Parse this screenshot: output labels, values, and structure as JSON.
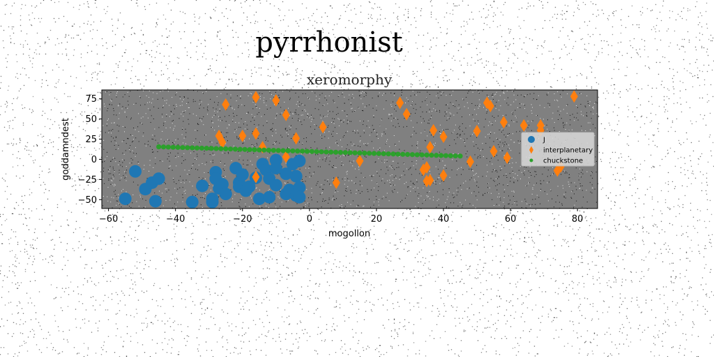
{
  "figure": {
    "suptitle": "pyrrhonist"
  },
  "chart_data": {
    "type": "scatter",
    "title": "xeromorphy",
    "xlabel": "mogollon",
    "ylabel": "goddamndest",
    "xlim": [
      -62,
      86
    ],
    "ylim": [
      -61,
      86
    ],
    "xticks": [
      -60,
      -40,
      -20,
      0,
      20,
      40,
      60,
      80
    ],
    "yticks": [
      -50,
      -25,
      0,
      25,
      50,
      75
    ],
    "xtick_labels": [
      "−60",
      "−40",
      "−20",
      "0",
      "20",
      "40",
      "60",
      "80"
    ],
    "ytick_labels": [
      "−50",
      "−25",
      "0",
      "25",
      "50",
      "75"
    ],
    "grid": false,
    "legend_position": "center-right",
    "plot_background": "#808080",
    "series": [
      {
        "name": "J",
        "marker": "circle",
        "color": "#1f77b4",
        "points": [
          [
            -55,
            -49
          ],
          [
            -52,
            -15
          ],
          [
            -49,
            -37
          ],
          [
            -47,
            -29
          ],
          [
            -46,
            -52
          ],
          [
            -45,
            -24
          ],
          [
            -35,
            -53
          ],
          [
            -32,
            -33
          ],
          [
            -29,
            -49
          ],
          [
            -29,
            -53
          ],
          [
            -28,
            -16
          ],
          [
            -28,
            -24
          ],
          [
            -27,
            -36
          ],
          [
            -26,
            -31
          ],
          [
            -25,
            -43
          ],
          [
            -22,
            -11
          ],
          [
            -21,
            -29
          ],
          [
            -21,
            -34
          ],
          [
            -20,
            -19
          ],
          [
            -19,
            -39
          ],
          [
            -18,
            -34
          ],
          [
            -16,
            -23
          ],
          [
            -15,
            -49
          ],
          [
            -14,
            -6
          ],
          [
            -13,
            -13
          ],
          [
            -12,
            -24
          ],
          [
            -12,
            -47
          ],
          [
            -10,
            -1
          ],
          [
            -10,
            -11
          ],
          [
            -7,
            -43
          ],
          [
            -6,
            -38
          ],
          [
            -5,
            -6
          ],
          [
            -4,
            -45
          ],
          [
            -4,
            -21
          ],
          [
            -3,
            -35
          ],
          [
            -3,
            -47
          ],
          [
            -3,
            -2
          ],
          [
            -7,
            -18
          ],
          [
            -10,
            -32
          ]
        ]
      },
      {
        "name": "interplanetary",
        "marker": "thin_diamond",
        "color": "#ff7f0e",
        "points": [
          [
            -27,
            29
          ],
          [
            -26,
            21
          ],
          [
            -25,
            68
          ],
          [
            -20,
            29
          ],
          [
            -16,
            77
          ],
          [
            -16,
            32
          ],
          [
            -16,
            -22
          ],
          [
            -14,
            15
          ],
          [
            -10,
            73
          ],
          [
            -7,
            55
          ],
          [
            -7,
            3
          ],
          [
            -4,
            26
          ],
          [
            4,
            40
          ],
          [
            8,
            -29
          ],
          [
            15,
            -2
          ],
          [
            27,
            70
          ],
          [
            29,
            56
          ],
          [
            34,
            -13
          ],
          [
            35,
            -10
          ],
          [
            35,
            -27
          ],
          [
            36,
            -26
          ],
          [
            36,
            15
          ],
          [
            37,
            36
          ],
          [
            40,
            28
          ],
          [
            40,
            -20
          ],
          [
            48,
            -3
          ],
          [
            50,
            35
          ],
          [
            53,
            70
          ],
          [
            54,
            66
          ],
          [
            55,
            10
          ],
          [
            58,
            46
          ],
          [
            59,
            2
          ],
          [
            64,
            42
          ],
          [
            69,
            42
          ],
          [
            69,
            36
          ],
          [
            74,
            -14
          ],
          [
            75,
            -9
          ],
          [
            79,
            78
          ]
        ]
      },
      {
        "name": "chuckstone",
        "marker": "small_circle",
        "color": "#2ca02c",
        "line": {
          "x_start": -45,
          "x_end": 45,
          "y_start": 15.5,
          "y_end": 4,
          "count": 64
        }
      }
    ]
  }
}
